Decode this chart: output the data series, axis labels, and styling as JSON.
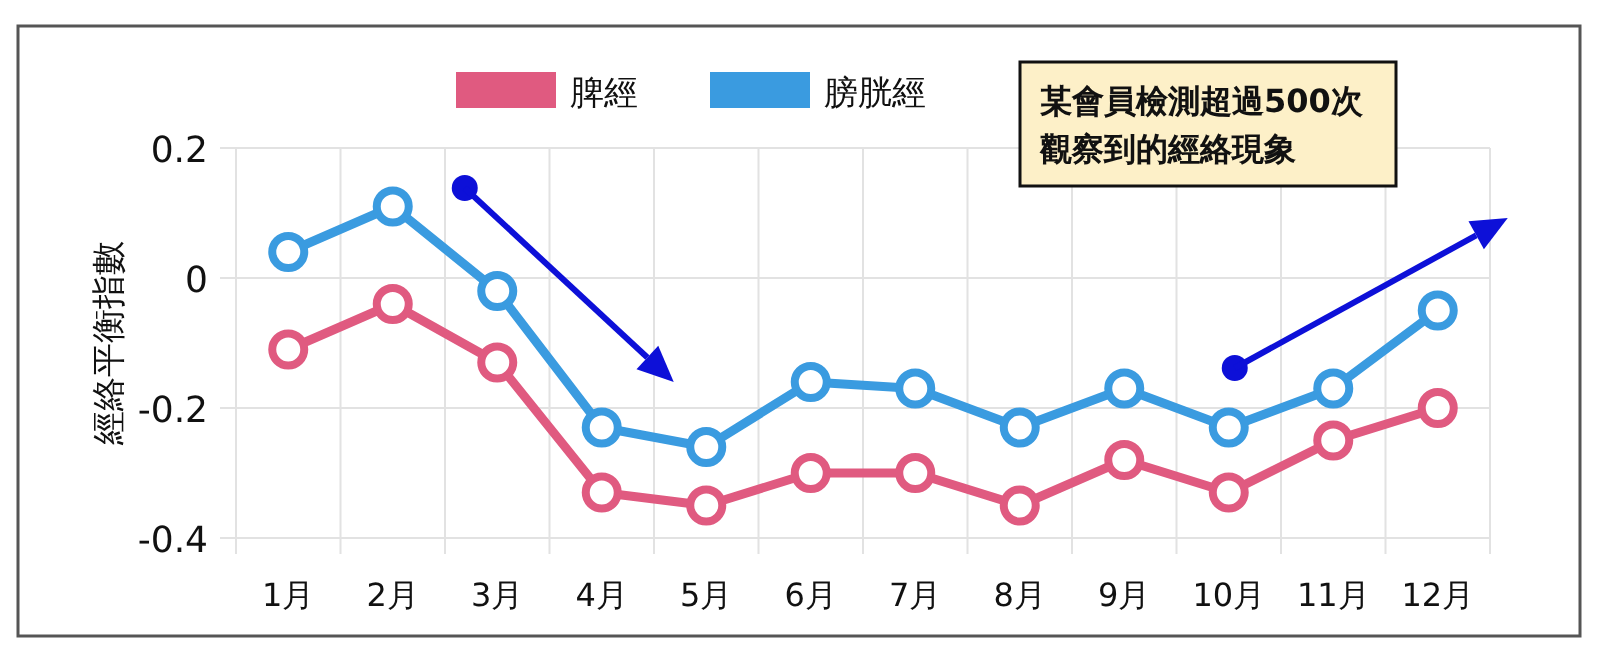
{
  "chart_data": {
    "type": "line",
    "ylabel": "經絡平衡指數",
    "categories": [
      "1月",
      "2月",
      "3月",
      "4月",
      "5月",
      "6月",
      "7月",
      "8月",
      "9月",
      "10月",
      "11月",
      "12月"
    ],
    "series": [
      {
        "name": "脾經",
        "color": "#e05a80",
        "values": [
          -0.11,
          -0.04,
          -0.13,
          -0.33,
          -0.35,
          -0.3,
          -0.3,
          -0.35,
          -0.28,
          -0.33,
          -0.25,
          -0.2
        ]
      },
      {
        "name": "膀胱經",
        "color": "#3a9be0",
        "values": [
          0.04,
          0.11,
          -0.02,
          -0.23,
          -0.26,
          -0.16,
          -0.17,
          -0.23,
          -0.17,
          -0.23,
          -0.17,
          -0.05
        ]
      }
    ],
    "ylim": [
      -0.4,
      0.2
    ],
    "yticks": [
      -0.4,
      -0.2,
      0,
      0.2
    ],
    "grid": true,
    "legend": "top",
    "marker": "circle",
    "annotations": [
      "某會員檢測超過500次觀察到的經絡現象"
    ]
  }
}
